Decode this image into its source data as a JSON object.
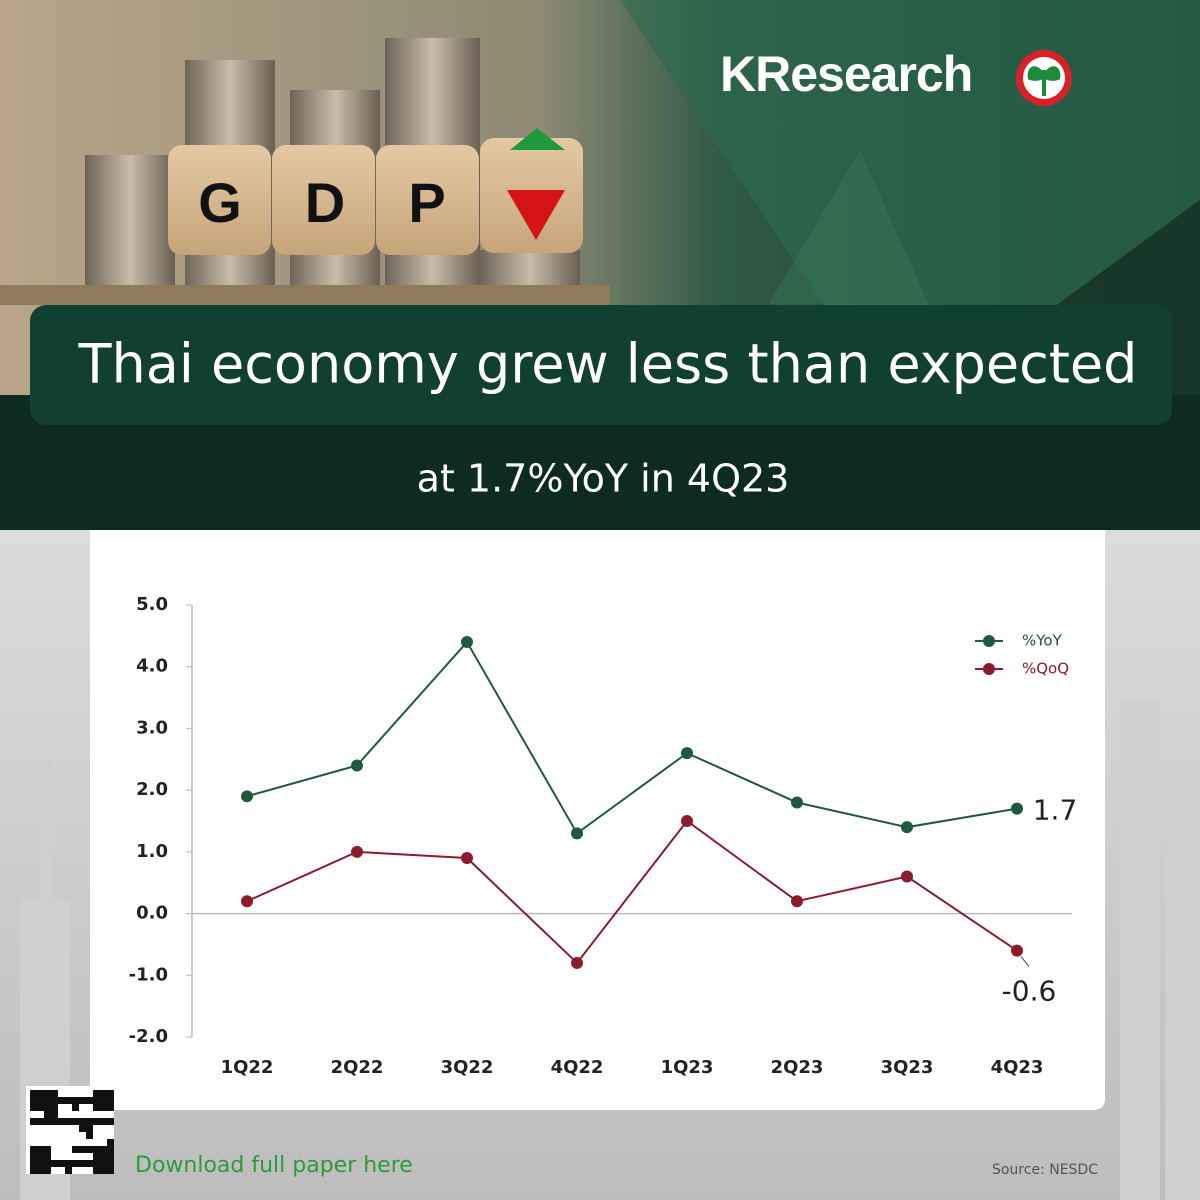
{
  "header": {
    "brand": "KResearch",
    "photo_letters": [
      "G",
      "D",
      "P"
    ],
    "title": "Thai economy grew less than expected",
    "subtitle": "at 1.7%YoY in 4Q23"
  },
  "chart_data": {
    "type": "line",
    "categories": [
      "1Q22",
      "2Q22",
      "3Q22",
      "4Q22",
      "1Q23",
      "2Q23",
      "3Q23",
      "4Q23"
    ],
    "series": [
      {
        "name": "%YoY",
        "color": "#1f5a3d",
        "values": [
          1.9,
          2.4,
          4.4,
          1.3,
          2.6,
          1.8,
          1.4,
          1.7
        ],
        "value_labels": [
          null,
          null,
          null,
          null,
          null,
          null,
          null,
          "1.7"
        ]
      },
      {
        "name": "%QoQ",
        "color": "#8c1b2c",
        "values": [
          0.2,
          1.0,
          0.9,
          -0.8,
          1.5,
          0.2,
          0.6,
          -0.6
        ],
        "value_labels": [
          null,
          null,
          null,
          null,
          null,
          null,
          null,
          "-0.6"
        ]
      }
    ],
    "ylim": [
      -2,
      5
    ],
    "yticks": [
      {
        "value": -2,
        "label": "-2.0"
      },
      {
        "value": -1,
        "label": "-1.0"
      },
      {
        "value": 0,
        "label": "0.0"
      },
      {
        "value": 1,
        "label": "1.0"
      },
      {
        "value": 2,
        "label": "2.0"
      },
      {
        "value": 3,
        "label": "3.0"
      },
      {
        "value": 4,
        "label": "4.0"
      },
      {
        "value": 5,
        "label": "5.0"
      }
    ],
    "legend": "top-right",
    "grid": false
  },
  "footer": {
    "download": "Download full paper here",
    "source": "Source: NESDC"
  }
}
